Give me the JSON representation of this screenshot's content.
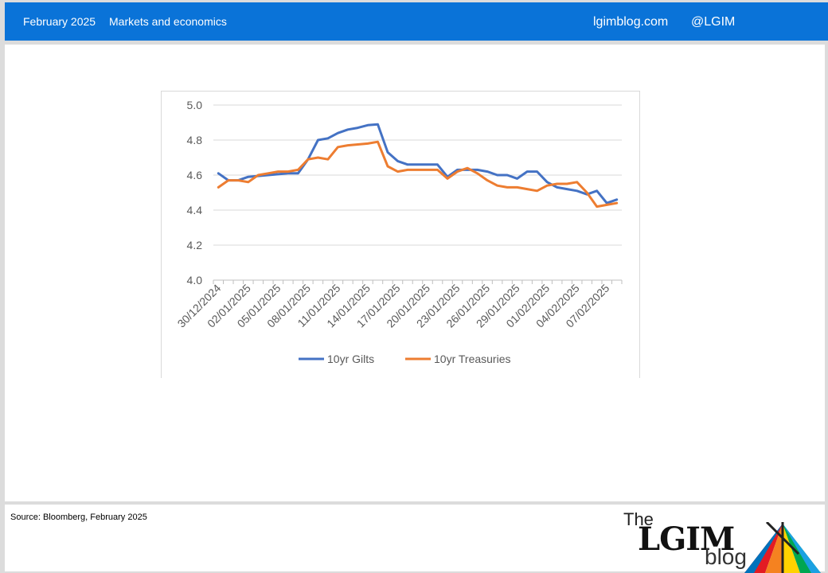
{
  "header": {
    "date": "February 2025",
    "section": "Markets and economics",
    "site": "lgimblog.com",
    "handle": "@LGIM"
  },
  "footer": {
    "source": "Source: Bloomberg, February 2025",
    "logo": {
      "the": "The",
      "name": "LGIM",
      "blog": "blog"
    }
  },
  "colors": {
    "header_bg": "#0a73d8",
    "gilts": "#4472c4",
    "treasuries": "#ed7d31"
  },
  "chart_data": {
    "type": "line",
    "title": "",
    "xlabel": "",
    "ylabel": "",
    "ylim": [
      4.0,
      5.0
    ],
    "yticks": [
      "5.0",
      "4.8",
      "4.6",
      "4.4",
      "4.2",
      "4.0"
    ],
    "grid": true,
    "legend_position": "bottom",
    "xtick_labels": [
      "30/12/2024",
      "02/01/2025",
      "05/01/2025",
      "08/01/2025",
      "11/01/2025",
      "14/01/2025",
      "17/01/2025",
      "20/01/2025",
      "23/01/2025",
      "26/01/2025",
      "29/01/2025",
      "01/02/2025",
      "04/02/2025",
      "07/02/2025"
    ],
    "x": [
      "30/12/2024",
      "31/12/2024",
      "01/01/2025",
      "02/01/2025",
      "03/01/2025",
      "04/01/2025",
      "05/01/2025",
      "06/01/2025",
      "07/01/2025",
      "08/01/2025",
      "09/01/2025",
      "10/01/2025",
      "11/01/2025",
      "12/01/2025",
      "13/01/2025",
      "14/01/2025",
      "15/01/2025",
      "16/01/2025",
      "17/01/2025",
      "18/01/2025",
      "19/01/2025",
      "20/01/2025",
      "21/01/2025",
      "22/01/2025",
      "23/01/2025",
      "24/01/2025",
      "25/01/2025",
      "26/01/2025",
      "27/01/2025",
      "28/01/2025",
      "29/01/2025",
      "30/01/2025",
      "31/01/2025",
      "01/02/2025",
      "02/02/2025",
      "03/02/2025",
      "04/02/2025",
      "05/02/2025",
      "06/02/2025",
      "07/02/2025",
      "08/02/2025"
    ],
    "series": [
      {
        "name": "10yr Gilts",
        "color": "#4472c4",
        "values": [
          4.61,
          4.57,
          4.57,
          4.59,
          4.595,
          4.6,
          4.605,
          4.61,
          4.61,
          4.69,
          4.8,
          4.81,
          4.84,
          4.86,
          4.87,
          4.885,
          4.89,
          4.73,
          4.68,
          4.66,
          4.66,
          4.66,
          4.66,
          4.59,
          4.63,
          4.63,
          4.63,
          4.62,
          4.6,
          4.6,
          4.58,
          4.62,
          4.62,
          4.56,
          4.53,
          4.52,
          4.51,
          4.49,
          4.51,
          4.44,
          4.46
        ]
      },
      {
        "name": "10yr Treasuries",
        "color": "#ed7d31",
        "values": [
          4.53,
          4.57,
          4.57,
          4.56,
          4.6,
          4.61,
          4.62,
          4.62,
          4.63,
          4.69,
          4.7,
          4.69,
          4.76,
          4.77,
          4.775,
          4.78,
          4.79,
          4.65,
          4.62,
          4.63,
          4.63,
          4.63,
          4.63,
          4.58,
          4.62,
          4.64,
          4.61,
          4.57,
          4.54,
          4.53,
          4.53,
          4.52,
          4.51,
          4.54,
          4.55,
          4.55,
          4.56,
          4.5,
          4.42,
          4.43,
          4.44
        ]
      }
    ]
  }
}
